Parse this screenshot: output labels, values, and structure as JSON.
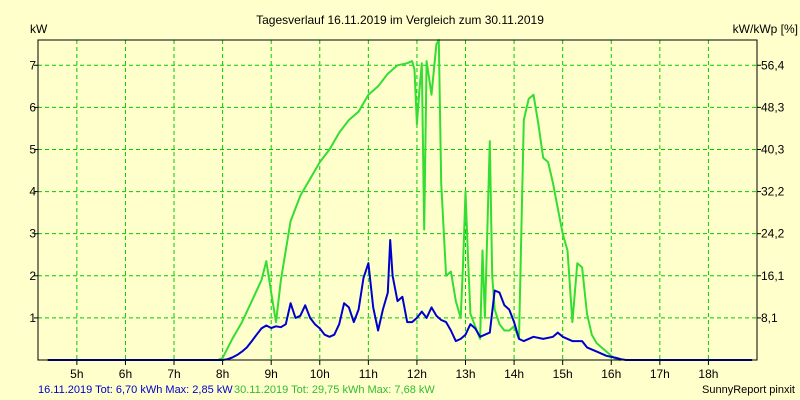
{
  "chart_data": {
    "type": "line",
    "title": "Tagesverlauf 16.11.2019 im Vergleich zum 30.11.2019",
    "ylabel_left": "kW",
    "ylabel_right": "kW/kWp [%]",
    "x_range": [
      4.2,
      19.0
    ],
    "ylim": [
      0,
      7.6
    ],
    "x_ticks": [
      "5h",
      "6h",
      "7h",
      "8h",
      "9h",
      "10h",
      "11h",
      "12h",
      "13h",
      "14h",
      "15h",
      "16h",
      "17h",
      "18h"
    ],
    "y_ticks_left": [
      "1",
      "2",
      "3",
      "4",
      "5",
      "6",
      "7"
    ],
    "y_ticks_right": [
      "8,1",
      "16,1",
      "24,2",
      "32,2",
      "40,3",
      "48,3",
      "56,4"
    ],
    "grid": true,
    "colors": {
      "background": "#ffffcc",
      "grid": "#00cc00",
      "series_blue": "#0000cc",
      "series_green": "#33dd33"
    },
    "series": [
      {
        "name": "16.11.2019",
        "color": "#0000cc",
        "points": [
          [
            4.4,
            0
          ],
          [
            8.0,
            0
          ],
          [
            8.1,
            0.02
          ],
          [
            8.2,
            0.06
          ],
          [
            8.3,
            0.12
          ],
          [
            8.4,
            0.2
          ],
          [
            8.5,
            0.3
          ],
          [
            8.6,
            0.45
          ],
          [
            8.7,
            0.6
          ],
          [
            8.8,
            0.75
          ],
          [
            8.9,
            0.82
          ],
          [
            9.0,
            0.76
          ],
          [
            9.1,
            0.8
          ],
          [
            9.2,
            0.78
          ],
          [
            9.3,
            0.85
          ],
          [
            9.4,
            1.35
          ],
          [
            9.5,
            1.0
          ],
          [
            9.6,
            1.05
          ],
          [
            9.7,
            1.3
          ],
          [
            9.8,
            1.0
          ],
          [
            9.9,
            0.85
          ],
          [
            10.0,
            0.75
          ],
          [
            10.1,
            0.6
          ],
          [
            10.2,
            0.55
          ],
          [
            10.3,
            0.6
          ],
          [
            10.4,
            0.85
          ],
          [
            10.5,
            1.35
          ],
          [
            10.6,
            1.25
          ],
          [
            10.7,
            0.9
          ],
          [
            10.8,
            1.2
          ],
          [
            10.9,
            1.95
          ],
          [
            11.0,
            2.3
          ],
          [
            11.1,
            1.25
          ],
          [
            11.2,
            0.7
          ],
          [
            11.3,
            1.2
          ],
          [
            11.4,
            1.6
          ],
          [
            11.45,
            2.85
          ],
          [
            11.5,
            2.0
          ],
          [
            11.6,
            1.4
          ],
          [
            11.7,
            1.5
          ],
          [
            11.8,
            0.9
          ],
          [
            11.9,
            0.9
          ],
          [
            12.0,
            1.0
          ],
          [
            12.1,
            1.15
          ],
          [
            12.2,
            1.0
          ],
          [
            12.3,
            1.25
          ],
          [
            12.4,
            1.05
          ],
          [
            12.5,
            0.95
          ],
          [
            12.6,
            0.9
          ],
          [
            12.7,
            0.7
          ],
          [
            12.8,
            0.45
          ],
          [
            12.9,
            0.5
          ],
          [
            13.0,
            0.6
          ],
          [
            13.1,
            0.85
          ],
          [
            13.2,
            0.75
          ],
          [
            13.3,
            0.55
          ],
          [
            13.4,
            0.6
          ],
          [
            13.5,
            0.65
          ],
          [
            13.6,
            1.65
          ],
          [
            13.7,
            1.6
          ],
          [
            13.8,
            1.3
          ],
          [
            13.9,
            1.2
          ],
          [
            14.0,
            0.9
          ],
          [
            14.1,
            0.5
          ],
          [
            14.2,
            0.45
          ],
          [
            14.4,
            0.55
          ],
          [
            14.6,
            0.5
          ],
          [
            14.8,
            0.55
          ],
          [
            14.9,
            0.65
          ],
          [
            15.0,
            0.55
          ],
          [
            15.2,
            0.45
          ],
          [
            15.4,
            0.45
          ],
          [
            15.5,
            0.3
          ],
          [
            15.7,
            0.2
          ],
          [
            15.9,
            0.1
          ],
          [
            16.1,
            0.05
          ],
          [
            16.2,
            0.02
          ],
          [
            16.3,
            0
          ],
          [
            18.9,
            0
          ]
        ]
      },
      {
        "name": "30.11.2019",
        "color": "#33dd33",
        "points": [
          [
            7.9,
            0
          ],
          [
            8.0,
            0.05
          ],
          [
            8.2,
            0.5
          ],
          [
            8.4,
            0.9
          ],
          [
            8.6,
            1.4
          ],
          [
            8.8,
            1.9
          ],
          [
            8.9,
            2.35
          ],
          [
            9.0,
            1.6
          ],
          [
            9.1,
            0.9
          ],
          [
            9.2,
            1.9
          ],
          [
            9.4,
            3.3
          ],
          [
            9.6,
            3.9
          ],
          [
            9.8,
            4.3
          ],
          [
            10.0,
            4.7
          ],
          [
            10.2,
            5.0
          ],
          [
            10.4,
            5.4
          ],
          [
            10.6,
            5.7
          ],
          [
            10.8,
            5.9
          ],
          [
            11.0,
            6.3
          ],
          [
            11.2,
            6.5
          ],
          [
            11.4,
            6.8
          ],
          [
            11.6,
            7.0
          ],
          [
            11.8,
            7.05
          ],
          [
            11.9,
            7.1
          ],
          [
            11.95,
            6.9
          ],
          [
            12.0,
            5.6
          ],
          [
            12.05,
            6.4
          ],
          [
            12.1,
            7.05
          ],
          [
            12.15,
            3.1
          ],
          [
            12.2,
            7.1
          ],
          [
            12.3,
            6.3
          ],
          [
            12.4,
            7.5
          ],
          [
            12.45,
            7.6
          ],
          [
            12.5,
            4.2
          ],
          [
            12.6,
            2.0
          ],
          [
            12.7,
            2.1
          ],
          [
            12.8,
            1.4
          ],
          [
            12.9,
            1.0
          ],
          [
            12.95,
            2.3
          ],
          [
            13.0,
            4.0
          ],
          [
            13.05,
            2.5
          ],
          [
            13.1,
            1.1
          ],
          [
            13.2,
            0.8
          ],
          [
            13.3,
            0.5
          ],
          [
            13.35,
            2.6
          ],
          [
            13.4,
            1.0
          ],
          [
            13.5,
            5.2
          ],
          [
            13.55,
            2.0
          ],
          [
            13.6,
            1.2
          ],
          [
            13.7,
            0.85
          ],
          [
            13.8,
            0.7
          ],
          [
            13.9,
            0.7
          ],
          [
            14.0,
            0.8
          ],
          [
            14.1,
            0.5
          ],
          [
            14.2,
            5.7
          ],
          [
            14.3,
            6.2
          ],
          [
            14.4,
            6.3
          ],
          [
            14.5,
            5.6
          ],
          [
            14.6,
            4.8
          ],
          [
            14.7,
            4.7
          ],
          [
            14.8,
            4.2
          ],
          [
            14.9,
            3.6
          ],
          [
            15.0,
            3.0
          ],
          [
            15.1,
            2.6
          ],
          [
            15.2,
            0.9
          ],
          [
            15.3,
            2.3
          ],
          [
            15.4,
            2.2
          ],
          [
            15.5,
            1.1
          ],
          [
            15.6,
            0.6
          ],
          [
            15.7,
            0.4
          ],
          [
            15.8,
            0.3
          ],
          [
            15.9,
            0.2
          ],
          [
            16.0,
            0.1
          ],
          [
            16.1,
            0.02
          ],
          [
            16.2,
            0
          ]
        ]
      }
    ],
    "footer": {
      "blue_stats": "16.11.2019 Tot: 6,70 kWh Max: 2,85 kW",
      "green_stats": "30.11.2019 Tot: 29,75 kWh Max: 7,68 kW",
      "credit": "SunnyReport pinxit"
    }
  }
}
